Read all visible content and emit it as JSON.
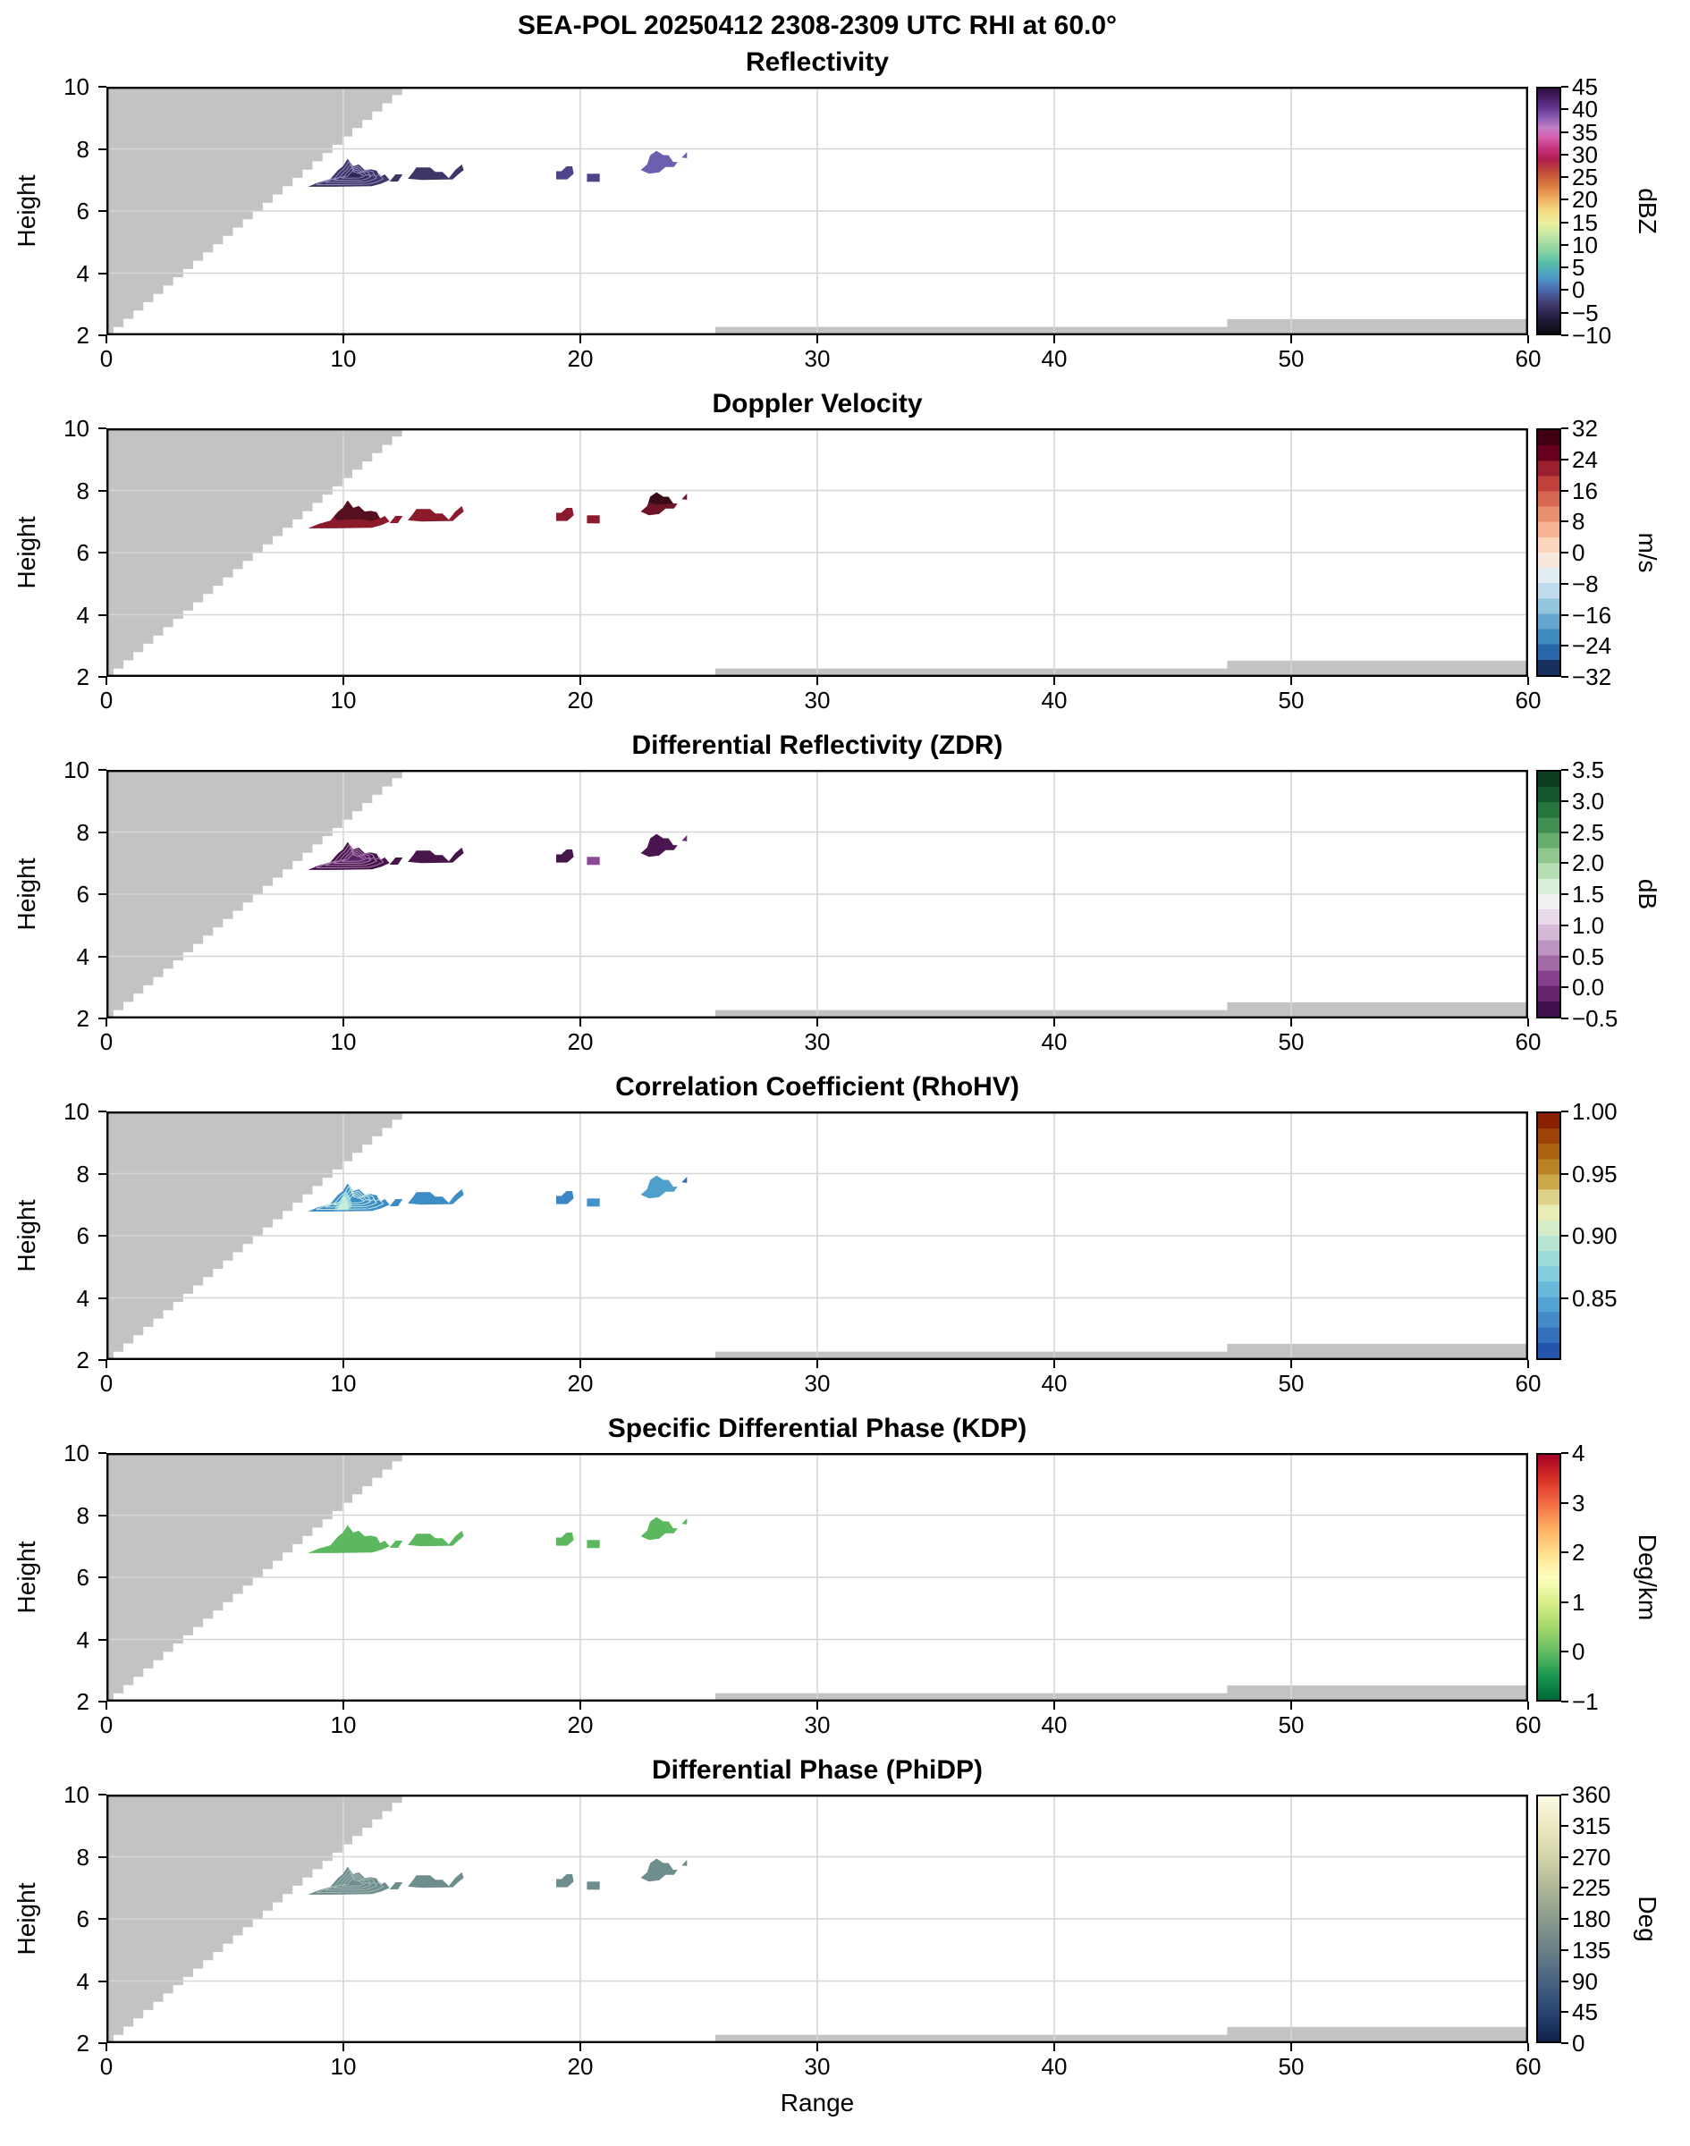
{
  "figure": {
    "suptitle": "SEA-POL 20250412 2308-2309 UTC RHI at 60.0°",
    "xlabel": "Range",
    "ylabel": "Height"
  },
  "chart_data": {
    "type": "heatmap",
    "kind": "Radar RHI vertical cross-sections, 6 stacked panels with shared Range/Height axes",
    "x_range": [
      0,
      60
    ],
    "y_range": [
      2,
      10
    ],
    "xticks": [
      0,
      10,
      20,
      30,
      40,
      50,
      60
    ],
    "yticks": [
      2,
      4,
      6,
      8,
      10
    ],
    "gridlines": {
      "x": [
        10,
        20,
        30,
        40,
        50
      ],
      "y": [
        4,
        6,
        8
      ]
    },
    "panels": [
      {
        "id": "reflectivity",
        "title": "Reflectivity",
        "unit": "dBZ",
        "cbar_style": "continuous",
        "cbar_range": [
          -10,
          45
        ],
        "cbar_tick_values": [
          45,
          40,
          35,
          30,
          25,
          20,
          15,
          10,
          5,
          0,
          -5,
          -10
        ],
        "cbar_tick_decimals": 0,
        "cbar_colors": [
          [
            "#2d0e42",
            0
          ],
          [
            "#5c2e86",
            7
          ],
          [
            "#8d5cb4",
            12
          ],
          [
            "#c17fc4",
            16
          ],
          [
            "#d75fae",
            20
          ],
          [
            "#c42e78",
            25
          ],
          [
            "#b01e50",
            29
          ],
          [
            "#c24a38",
            34
          ],
          [
            "#dd7f41",
            40
          ],
          [
            "#eeb05f",
            45
          ],
          [
            "#f2db80",
            50
          ],
          [
            "#edf0a0",
            55
          ],
          [
            "#c3e6a4",
            60
          ],
          [
            "#8cd3a1",
            66
          ],
          [
            "#56bfa9",
            71
          ],
          [
            "#4d9cc8",
            77
          ],
          [
            "#4b6ab0",
            82
          ],
          [
            "#403a6e",
            88
          ],
          [
            "#241c3d",
            94
          ],
          [
            "#0a080f",
            100
          ]
        ],
        "echo_value_range": "-4 to +6 dBZ (dark purple shades)",
        "style": {
          "fill": "#3e3766",
          "c1_fill": "#4f4489",
          "c2_fill": "#4f4489",
          "d_fill": "#6c60ae",
          "e_fill": "#6c60ae",
          "core": "#2c2850",
          "contours": "#8f88bd",
          "main_upper": null,
          "d_upper": null,
          "rho_inner": false
        }
      },
      {
        "id": "velocity",
        "title": "Doppler Velocity",
        "unit": "m/s",
        "cbar_style": "bands",
        "cbar_range": [
          -32,
          32
        ],
        "cbar_tick_values": [
          32,
          24,
          16,
          8,
          0,
          -8,
          -16,
          -24,
          -32
        ],
        "cbar_tick_decimals": 0,
        "cbar_colors": [
          "#400012",
          "#67001f",
          "#9a2030",
          "#c0403c",
          "#d66752",
          "#e88f70",
          "#f4b393",
          "#fbd5bd",
          "#f7e7dc",
          "#e2ecf3",
          "#c0dbec",
          "#94c5df",
          "#65a7d0",
          "#3e89be",
          "#2767a9",
          "#17305f"
        ],
        "echo_value_range": "+22 to +32 m/s (dark red shades)",
        "style": {
          "fill": "#8c1a2d",
          "c1_fill": "#8c1a2d",
          "c2_fill": "#8c1a2d",
          "d_fill": "#6f1326",
          "e_fill": "#6f1326",
          "core": null,
          "contours": null,
          "main_upper": "#551020",
          "d_upper": "#390d18",
          "rho_inner": false
        }
      },
      {
        "id": "zdr",
        "title": "Differential Reflectivity (ZDR)",
        "unit": "dB",
        "cbar_style": "bands",
        "cbar_range": [
          -0.5,
          3.5
        ],
        "cbar_tick_values": [
          3.5,
          3.0,
          2.5,
          2.0,
          1.5,
          1.0,
          0.5,
          0.0,
          -0.5
        ],
        "cbar_tick_decimals": 1,
        "cbar_colors": [
          "#0b3d20",
          "#15562c",
          "#26753c",
          "#418f52",
          "#66ad6e",
          "#8fc78f",
          "#b7ddb4",
          "#dbeed9",
          "#f3f0f4",
          "#e9dae9",
          "#d6b9d7",
          "#bd95c2",
          "#a26ba8",
          "#853f8e",
          "#64256b",
          "#420f4d"
        ],
        "echo_value_range": "-0.4 to +0.3 dB (dark purple shades)",
        "style": {
          "fill": "#461549",
          "c1_fill": "#461549",
          "c2_fill": "#8a4a95",
          "d_fill": "#4a1550",
          "e_fill": "#6b2f77",
          "core": "#5d2364",
          "contours": "#a678ae",
          "main_upper": null,
          "d_upper": null,
          "rho_inner": false
        }
      },
      {
        "id": "rhohv",
        "title": "Correlation Coefficient (RhoHV)",
        "unit": "",
        "cbar_style": "bands",
        "cbar_range": [
          0.8,
          1.0
        ],
        "cbar_tick_values": [
          1.0,
          0.95,
          0.9,
          0.85
        ],
        "cbar_tick_decimals": 2,
        "cbar_colors": [
          "#8a2000",
          "#9d4307",
          "#ab6210",
          "#b88423",
          "#cbaa4a",
          "#ded289",
          "#e9ecb6",
          "#d4ecc8",
          "#b8e5d2",
          "#9cdbda",
          "#82cdde",
          "#68b9da",
          "#52a3d3",
          "#428bc7",
          "#3270bb",
          "#2355ad"
        ],
        "echo_value_range": "0.88 to 0.96 (blue, pale cyan core)",
        "style": {
          "fill": "#3e8cc6",
          "c1_fill": "#3d86c4",
          "c2_fill": "#4492ca",
          "d_fill": "#4f9fcd",
          "e_fill": "#2e6db4",
          "core": null,
          "contours": "#bfe8e0",
          "main_upper": null,
          "d_upper": null,
          "rho_inner": true
        }
      },
      {
        "id": "kdp",
        "title": "Specific Differential Phase (KDP)",
        "unit": "Deg/km",
        "cbar_style": "continuous",
        "cbar_range": [
          -1,
          4
        ],
        "cbar_tick_values": [
          4,
          3,
          2,
          1,
          0,
          -1
        ],
        "cbar_tick_decimals": 0,
        "cbar_colors": [
          [
            "#a50026",
            0
          ],
          [
            "#d73027",
            10
          ],
          [
            "#f46d43",
            20
          ],
          [
            "#fdae61",
            30
          ],
          [
            "#fee08b",
            40
          ],
          [
            "#ffffbf",
            50
          ],
          [
            "#d9ef8b",
            60
          ],
          [
            "#a6d96a",
            70
          ],
          [
            "#66bd63",
            80
          ],
          [
            "#1a9850",
            90
          ],
          [
            "#006837",
            100
          ]
        ],
        "echo_value_range": "≈ 0 to +0.5 Deg/km (uniform medium green)",
        "style": {
          "fill": "#5cb85f",
          "c1_fill": "#5cb85f",
          "c2_fill": "#5cb85f",
          "d_fill": "#5cb85f",
          "e_fill": "#5cb85f",
          "core": null,
          "contours": null,
          "main_upper": null,
          "d_upper": null,
          "rho_inner": false
        }
      },
      {
        "id": "phidp",
        "title": "Differential Phase (PhiDP)",
        "unit": "Deg",
        "cbar_style": "continuous",
        "cbar_range": [
          0,
          360
        ],
        "cbar_tick_values": [
          360,
          315,
          270,
          225,
          180,
          135,
          90,
          45,
          0
        ],
        "cbar_tick_decimals": 0,
        "cbar_colors": [
          [
            "#fbf9e4",
            0
          ],
          [
            "#eceac2",
            12
          ],
          [
            "#d2d3a9",
            25
          ],
          [
            "#b0b898",
            37
          ],
          [
            "#8c9c8e",
            50
          ],
          [
            "#6b8287",
            62
          ],
          [
            "#4c6683",
            74
          ],
          [
            "#2e4a75",
            86
          ],
          [
            "#1a305c",
            95
          ],
          [
            "#102148",
            100
          ]
        ],
        "echo_value_range": "≈ 190 to 215 Deg (slate gray-green)",
        "style": {
          "fill": "#6e8d8d",
          "c1_fill": "#6e8d8d",
          "c2_fill": "#6e8d8d",
          "d_fill": "#6e8d8d",
          "e_fill": "#6e8d8d",
          "core": null,
          "contours": "#a0b7b3",
          "main_upper": null,
          "d_upper": null,
          "rho_inner": false
        }
      }
    ],
    "echo_regions": {
      "main": [
        [
          8.5,
          6.78
        ],
        [
          8.95,
          6.92
        ],
        [
          9.45,
          7.03
        ],
        [
          9.62,
          7.18
        ],
        [
          9.78,
          7.32
        ],
        [
          9.98,
          7.44
        ],
        [
          10.18,
          7.68
        ],
        [
          10.42,
          7.44
        ],
        [
          10.65,
          7.5
        ],
        [
          10.9,
          7.32
        ],
        [
          11.15,
          7.34
        ],
        [
          11.4,
          7.3
        ],
        [
          11.55,
          7.1
        ],
        [
          11.75,
          7.18
        ],
        [
          11.95,
          7.0
        ],
        [
          11.6,
          6.88
        ],
        [
          11.2,
          6.8
        ],
        [
          9.4,
          6.78
        ]
      ],
      "p": [
        [
          11.95,
          6.95
        ],
        [
          12.2,
          7.18
        ],
        [
          12.5,
          7.18
        ],
        [
          12.3,
          6.95
        ]
      ],
      "b": [
        [
          12.72,
          7.04
        ],
        [
          12.95,
          7.26
        ],
        [
          13.08,
          7.4
        ],
        [
          13.66,
          7.4
        ],
        [
          13.88,
          7.26
        ],
        [
          14.18,
          7.26
        ],
        [
          14.45,
          7.06
        ],
        [
          14.72,
          7.32
        ],
        [
          15.0,
          7.5
        ],
        [
          15.08,
          7.32
        ],
        [
          14.85,
          7.18
        ],
        [
          14.62,
          7.02
        ],
        [
          13.3,
          7.0
        ]
      ],
      "c1": [
        [
          18.98,
          7.02
        ],
        [
          18.98,
          7.28
        ],
        [
          19.2,
          7.28
        ],
        [
          19.42,
          7.44
        ],
        [
          19.66,
          7.44
        ],
        [
          19.72,
          7.2
        ],
        [
          19.45,
          7.02
        ]
      ],
      "c2": [
        [
          20.28,
          6.94
        ],
        [
          20.28,
          7.2
        ],
        [
          20.82,
          7.2
        ],
        [
          20.82,
          6.94
        ]
      ],
      "d": [
        [
          22.55,
          7.32
        ],
        [
          22.82,
          7.5
        ],
        [
          22.95,
          7.8
        ],
        [
          23.22,
          7.94
        ],
        [
          23.5,
          7.8
        ],
        [
          23.72,
          7.8
        ],
        [
          23.92,
          7.58
        ],
        [
          24.1,
          7.58
        ],
        [
          23.95,
          7.42
        ],
        [
          23.6,
          7.42
        ],
        [
          23.32,
          7.24
        ],
        [
          22.9,
          7.2
        ]
      ],
      "e": [
        [
          24.28,
          7.72
        ],
        [
          24.5,
          7.9
        ],
        [
          24.5,
          7.7
        ]
      ]
    },
    "overlays": {
      "main_upper": [
        [
          9.62,
          7.18
        ],
        [
          9.78,
          7.32
        ],
        [
          9.98,
          7.44
        ],
        [
          10.18,
          7.68
        ],
        [
          10.42,
          7.44
        ],
        [
          10.65,
          7.5
        ],
        [
          10.9,
          7.32
        ],
        [
          11.15,
          7.34
        ],
        [
          11.4,
          7.3
        ],
        [
          11.55,
          7.1
        ],
        [
          11.2,
          7.02
        ],
        [
          10.6,
          7.08
        ],
        [
          10.0,
          7.05
        ],
        [
          9.7,
          7.05
        ]
      ],
      "d_upper": [
        [
          22.88,
          7.62
        ],
        [
          22.95,
          7.8
        ],
        [
          23.22,
          7.94
        ],
        [
          23.5,
          7.8
        ],
        [
          23.72,
          7.8
        ],
        [
          23.92,
          7.58
        ],
        [
          23.5,
          7.56
        ],
        [
          23.1,
          7.56
        ]
      ],
      "rho_inner1": [
        [
          9.6,
          6.82
        ],
        [
          9.75,
          7.0
        ],
        [
          9.9,
          7.2
        ],
        [
          10.1,
          7.45
        ],
        [
          10.3,
          7.2
        ],
        [
          10.35,
          6.95
        ],
        [
          10.2,
          6.82
        ]
      ],
      "rho_inner2": [
        [
          9.75,
          6.84
        ],
        [
          9.9,
          7.05
        ],
        [
          10.05,
          7.3
        ],
        [
          10.2,
          7.05
        ],
        [
          10.2,
          6.86
        ]
      ]
    },
    "blocked_regions": {
      "beam_block_staircase": {
        "x_start": 0.3,
        "x_end": 12.9,
        "y_start": 2,
        "y_end": 10,
        "steps": 30
      },
      "ground_strips": [
        [
          25.7,
          2
        ],
        [
          25.7,
          2.27
        ],
        [
          47.3,
          2.27
        ],
        [
          47.3,
          2.52
        ],
        [
          60,
          2.52
        ],
        [
          60,
          2
        ]
      ]
    },
    "colors": {
      "mask": "#c3c3c3",
      "grid": "#d6d6d6",
      "spine": "#000000"
    }
  }
}
